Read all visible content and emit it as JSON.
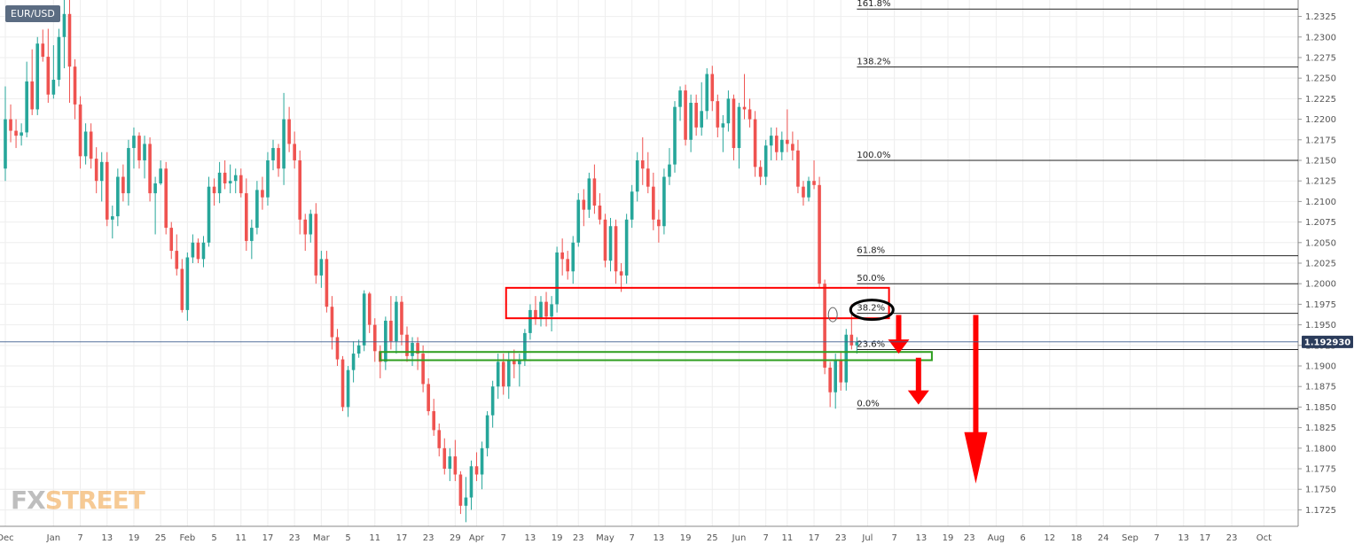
{
  "symbol": "EUR/USD",
  "logo": {
    "prefix": "FX",
    "suffix": "STREET"
  },
  "colors": {
    "up": "#26a69a",
    "down": "#ef5350",
    "box_red": "#ff0000",
    "box_green": "#2e9e1f",
    "price_tag": "#2b3c5b",
    "grid": "#eeeeee"
  },
  "last_price": {
    "label": "1.192930",
    "value": 1.19293
  },
  "chart_data": {
    "type": "candlestick",
    "title": "",
    "grid": true,
    "ylim": [
      1.1705,
      1.2345
    ],
    "y_ticks": [
      1.2325,
      1.23,
      1.2275,
      1.225,
      1.2225,
      1.22,
      1.2175,
      1.215,
      1.2125,
      1.21,
      1.2075,
      1.205,
      1.2025,
      1.2,
      1.1975,
      1.195,
      1.1925,
      1.19,
      1.1875,
      1.185,
      1.1825,
      1.18,
      1.1775,
      1.175,
      1.1725
    ],
    "x_labels": [
      "Dec",
      "Jan",
      "7",
      "13",
      "19",
      "25",
      "Feb",
      "5",
      "11",
      "17",
      "23",
      "Mar",
      "5",
      "11",
      "17",
      "23",
      "29",
      "Apr",
      "7",
      "13",
      "19",
      "23",
      "May",
      "7",
      "13",
      "19",
      "25",
      "Jun",
      "7",
      "11",
      "17",
      "23",
      "Jul",
      "7",
      "13",
      "19",
      "23",
      "Aug",
      "6",
      "12",
      "18",
      "24",
      "Sep",
      "7",
      "13",
      "17",
      "23",
      "Oct"
    ],
    "x_label_slots": [
      0,
      9,
      14,
      19,
      24,
      29,
      34,
      39,
      44,
      49,
      54,
      59,
      64,
      69,
      74,
      79,
      84,
      88,
      93,
      98,
      103,
      107,
      112,
      117,
      122,
      127,
      132,
      137,
      142,
      146,
      151,
      156,
      161,
      166,
      171,
      176,
      180,
      185,
      190,
      195,
      200,
      205,
      210,
      215,
      220,
      224,
      229,
      235
    ],
    "fib_levels": [
      {
        "label": "161.8%",
        "value": 1.2334
      },
      {
        "label": "138.2%",
        "value": 1.22635
      },
      {
        "label": "100.0%",
        "value": 1.215
      },
      {
        "label": "61.8%",
        "value": 1.2034
      },
      {
        "label": "50.0%",
        "value": 1.2
      },
      {
        "label": "38.2%",
        "value": 1.1964
      },
      {
        "label": "23.6%",
        "value": 1.192
      },
      {
        "label": "0.0%",
        "value": 1.1848
      }
    ],
    "resistance_zone": [
      1.1958,
      1.1995
    ],
    "support_zone": [
      1.1907,
      1.1917
    ],
    "candles": [
      {
        "o": 1.214,
        "h": 1.224,
        "l": 1.2125,
        "c": 1.22
      },
      {
        "o": 1.22,
        "h": 1.2218,
        "l": 1.2172,
        "c": 1.2186
      },
      {
        "o": 1.2186,
        "h": 1.22,
        "l": 1.2165,
        "c": 1.218
      },
      {
        "o": 1.218,
        "h": 1.2195,
        "l": 1.2168,
        "c": 1.2184
      },
      {
        "o": 1.2184,
        "h": 1.227,
        "l": 1.2178,
        "c": 1.2246
      },
      {
        "o": 1.2246,
        "h": 1.2285,
        "l": 1.2205,
        "c": 1.2212
      },
      {
        "o": 1.2212,
        "h": 1.23,
        "l": 1.2205,
        "c": 1.2292
      },
      {
        "o": 1.2292,
        "h": 1.2309,
        "l": 1.227,
        "c": 1.2276
      },
      {
        "o": 1.2276,
        "h": 1.231,
        "l": 1.222,
        "c": 1.223
      },
      {
        "o": 1.223,
        "h": 1.229,
        "l": 1.2225,
        "c": 1.2248
      },
      {
        "o": 1.2248,
        "h": 1.231,
        "l": 1.224,
        "c": 1.23
      },
      {
        "o": 1.23,
        "h": 1.2348,
        "l": 1.2262,
        "c": 1.2328
      },
      {
        "o": 1.2328,
        "h": 1.2345,
        "l": 1.222,
        "c": 1.2264
      },
      {
        "o": 1.2264,
        "h": 1.2273,
        "l": 1.22,
        "c": 1.2218
      },
      {
        "o": 1.2218,
        "h": 1.2228,
        "l": 1.214,
        "c": 1.2155
      },
      {
        "o": 1.2155,
        "h": 1.2195,
        "l": 1.2145,
        "c": 1.2185
      },
      {
        "o": 1.2185,
        "h": 1.2195,
        "l": 1.214,
        "c": 1.2152
      },
      {
        "o": 1.2152,
        "h": 1.2166,
        "l": 1.211,
        "c": 1.2125
      },
      {
        "o": 1.2125,
        "h": 1.216,
        "l": 1.21,
        "c": 1.2148
      },
      {
        "o": 1.2148,
        "h": 1.216,
        "l": 1.207,
        "c": 1.2078
      },
      {
        "o": 1.2078,
        "h": 1.2095,
        "l": 1.2055,
        "c": 1.2082
      },
      {
        "o": 1.2082,
        "h": 1.214,
        "l": 1.207,
        "c": 1.213
      },
      {
        "o": 1.213,
        "h": 1.2145,
        "l": 1.21,
        "c": 1.211
      },
      {
        "o": 1.211,
        "h": 1.2175,
        "l": 1.2095,
        "c": 1.2165
      },
      {
        "o": 1.2165,
        "h": 1.219,
        "l": 1.214,
        "c": 1.218
      },
      {
        "o": 1.218,
        "h": 1.2184,
        "l": 1.214,
        "c": 1.215
      },
      {
        "o": 1.215,
        "h": 1.218,
        "l": 1.2128,
        "c": 1.217
      },
      {
        "o": 1.217,
        "h": 1.2178,
        "l": 1.21,
        "c": 1.211
      },
      {
        "o": 1.211,
        "h": 1.213,
        "l": 1.206,
        "c": 1.2122
      },
      {
        "o": 1.2122,
        "h": 1.215,
        "l": 1.212,
        "c": 1.214
      },
      {
        "o": 1.214,
        "h": 1.2148,
        "l": 1.206,
        "c": 1.2068
      },
      {
        "o": 1.2068,
        "h": 1.2075,
        "l": 1.203,
        "c": 1.204
      },
      {
        "o": 1.204,
        "h": 1.206,
        "l": 1.201,
        "c": 1.2018
      },
      {
        "o": 1.2018,
        "h": 1.203,
        "l": 1.1965,
        "c": 1.1968
      },
      {
        "o": 1.1968,
        "h": 1.2038,
        "l": 1.1955,
        "c": 1.2032
      },
      {
        "o": 1.2032,
        "h": 1.206,
        "l": 1.2025,
        "c": 1.205
      },
      {
        "o": 1.205,
        "h": 1.2055,
        "l": 1.2025,
        "c": 1.203
      },
      {
        "o": 1.203,
        "h": 1.2058,
        "l": 1.202,
        "c": 1.205
      },
      {
        "o": 1.205,
        "h": 1.213,
        "l": 1.2045,
        "c": 1.2118
      },
      {
        "o": 1.2118,
        "h": 1.2128,
        "l": 1.2095,
        "c": 1.211
      },
      {
        "o": 1.211,
        "h": 1.2148,
        "l": 1.2098,
        "c": 1.2135
      },
      {
        "o": 1.2135,
        "h": 1.215,
        "l": 1.2115,
        "c": 1.2122
      },
      {
        "o": 1.2122,
        "h": 1.2145,
        "l": 1.211,
        "c": 1.2125
      },
      {
        "o": 1.2125,
        "h": 1.214,
        "l": 1.211,
        "c": 1.2132
      },
      {
        "o": 1.2132,
        "h": 1.214,
        "l": 1.2105,
        "c": 1.211
      },
      {
        "o": 1.211,
        "h": 1.2128,
        "l": 1.204,
        "c": 1.2052
      },
      {
        "o": 1.2052,
        "h": 1.2078,
        "l": 1.203,
        "c": 1.2068
      },
      {
        "o": 1.2068,
        "h": 1.2125,
        "l": 1.206,
        "c": 1.2114
      },
      {
        "o": 1.2114,
        "h": 1.213,
        "l": 1.209,
        "c": 1.2105
      },
      {
        "o": 1.2105,
        "h": 1.216,
        "l": 1.2095,
        "c": 1.215
      },
      {
        "o": 1.215,
        "h": 1.2175,
        "l": 1.2138,
        "c": 1.2165
      },
      {
        "o": 1.2165,
        "h": 1.217,
        "l": 1.213,
        "c": 1.214
      },
      {
        "o": 1.214,
        "h": 1.2232,
        "l": 1.212,
        "c": 1.22
      },
      {
        "o": 1.22,
        "h": 1.2215,
        "l": 1.216,
        "c": 1.217
      },
      {
        "o": 1.217,
        "h": 1.2185,
        "l": 1.214,
        "c": 1.215
      },
      {
        "o": 1.215,
        "h": 1.2162,
        "l": 1.206,
        "c": 1.2078
      },
      {
        "o": 1.2078,
        "h": 1.2085,
        "l": 1.204,
        "c": 1.206
      },
      {
        "o": 1.206,
        "h": 1.209,
        "l": 1.205,
        "c": 1.2085
      },
      {
        "o": 1.2085,
        "h": 1.2098,
        "l": 1.2,
        "c": 1.201
      },
      {
        "o": 1.201,
        "h": 1.204,
        "l": 1.1995,
        "c": 1.203
      },
      {
        "o": 1.203,
        "h": 1.204,
        "l": 1.1965,
        "c": 1.1972
      },
      {
        "o": 1.1972,
        "h": 1.1985,
        "l": 1.192,
        "c": 1.1935
      },
      {
        "o": 1.1935,
        "h": 1.1945,
        "l": 1.19,
        "c": 1.1908
      },
      {
        "o": 1.1908,
        "h": 1.1912,
        "l": 1.1845,
        "c": 1.185
      },
      {
        "o": 1.185,
        "h": 1.19,
        "l": 1.1838,
        "c": 1.1895
      },
      {
        "o": 1.1895,
        "h": 1.193,
        "l": 1.188,
        "c": 1.1915
      },
      {
        "o": 1.1915,
        "h": 1.1932,
        "l": 1.191,
        "c": 1.1925
      },
      {
        "o": 1.1925,
        "h": 1.1992,
        "l": 1.1918,
        "c": 1.1988
      },
      {
        "o": 1.1988,
        "h": 1.199,
        "l": 1.194,
        "c": 1.195
      },
      {
        "o": 1.195,
        "h": 1.1958,
        "l": 1.1905,
        "c": 1.1918
      },
      {
        "o": 1.1918,
        "h": 1.1925,
        "l": 1.1885,
        "c": 1.1905
      },
      {
        "o": 1.1905,
        "h": 1.196,
        "l": 1.1895,
        "c": 1.1955
      },
      {
        "o": 1.1955,
        "h": 1.1985,
        "l": 1.192,
        "c": 1.193
      },
      {
        "o": 1.193,
        "h": 1.1985,
        "l": 1.1915,
        "c": 1.1978
      },
      {
        "o": 1.1978,
        "h": 1.1985,
        "l": 1.1925,
        "c": 1.1938
      },
      {
        "o": 1.1938,
        "h": 1.1948,
        "l": 1.1905,
        "c": 1.1912
      },
      {
        "o": 1.1912,
        "h": 1.1935,
        "l": 1.19,
        "c": 1.1928
      },
      {
        "o": 1.1928,
        "h": 1.1935,
        "l": 1.1895,
        "c": 1.1915
      },
      {
        "o": 1.1915,
        "h": 1.1925,
        "l": 1.1868,
        "c": 1.1878
      },
      {
        "o": 1.1878,
        "h": 1.1885,
        "l": 1.184,
        "c": 1.1845
      },
      {
        "o": 1.1845,
        "h": 1.186,
        "l": 1.1815,
        "c": 1.1822
      },
      {
        "o": 1.1822,
        "h": 1.183,
        "l": 1.179,
        "c": 1.18
      },
      {
        "o": 1.18,
        "h": 1.1812,
        "l": 1.1768,
        "c": 1.1775
      },
      {
        "o": 1.1775,
        "h": 1.18,
        "l": 1.176,
        "c": 1.179
      },
      {
        "o": 1.179,
        "h": 1.181,
        "l": 1.176,
        "c": 1.1768
      },
      {
        "o": 1.1768,
        "h": 1.1772,
        "l": 1.172,
        "c": 1.173
      },
      {
        "o": 1.173,
        "h": 1.1765,
        "l": 1.171,
        "c": 1.174
      },
      {
        "o": 1.174,
        "h": 1.1785,
        "l": 1.1725,
        "c": 1.1778
      },
      {
        "o": 1.1778,
        "h": 1.1795,
        "l": 1.176,
        "c": 1.1768
      },
      {
        "o": 1.1768,
        "h": 1.1808,
        "l": 1.175,
        "c": 1.18
      },
      {
        "o": 1.18,
        "h": 1.1845,
        "l": 1.179,
        "c": 1.184
      },
      {
        "o": 1.184,
        "h": 1.1882,
        "l": 1.1825,
        "c": 1.1875
      },
      {
        "o": 1.1875,
        "h": 1.1915,
        "l": 1.186,
        "c": 1.1905
      },
      {
        "o": 1.1905,
        "h": 1.1915,
        "l": 1.1865,
        "c": 1.1875
      },
      {
        "o": 1.1875,
        "h": 1.1918,
        "l": 1.186,
        "c": 1.1908
      },
      {
        "o": 1.1908,
        "h": 1.192,
        "l": 1.1885,
        "c": 1.1902
      },
      {
        "o": 1.1902,
        "h": 1.1915,
        "l": 1.1875,
        "c": 1.1908
      },
      {
        "o": 1.1908,
        "h": 1.1945,
        "l": 1.19,
        "c": 1.194
      },
      {
        "o": 1.194,
        "h": 1.1975,
        "l": 1.1932,
        "c": 1.1968
      },
      {
        "o": 1.1968,
        "h": 1.1985,
        "l": 1.195,
        "c": 1.1958
      },
      {
        "o": 1.1958,
        "h": 1.1985,
        "l": 1.1948,
        "c": 1.1978
      },
      {
        "o": 1.1978,
        "h": 1.199,
        "l": 1.1948,
        "c": 1.196
      },
      {
        "o": 1.196,
        "h": 1.1985,
        "l": 1.1942,
        "c": 1.1975
      },
      {
        "o": 1.1975,
        "h": 1.2045,
        "l": 1.1965,
        "c": 1.2038
      },
      {
        "o": 1.2038,
        "h": 1.2055,
        "l": 1.201,
        "c": 1.203
      },
      {
        "o": 1.203,
        "h": 1.204,
        "l": 1.2005,
        "c": 1.2015
      },
      {
        "o": 1.2015,
        "h": 1.2058,
        "l": 1.2,
        "c": 1.205
      },
      {
        "o": 1.205,
        "h": 1.211,
        "l": 1.2045,
        "c": 1.2102
      },
      {
        "o": 1.2102,
        "h": 1.2115,
        "l": 1.207,
        "c": 1.209
      },
      {
        "o": 1.209,
        "h": 1.2135,
        "l": 1.208,
        "c": 1.2128
      },
      {
        "o": 1.2128,
        "h": 1.2145,
        "l": 1.2085,
        "c": 1.2095
      },
      {
        "o": 1.2095,
        "h": 1.211,
        "l": 1.2072,
        "c": 1.2078
      },
      {
        "o": 1.2078,
        "h": 1.2085,
        "l": 1.202,
        "c": 1.2028
      },
      {
        "o": 1.2028,
        "h": 1.208,
        "l": 1.2015,
        "c": 1.207
      },
      {
        "o": 1.207,
        "h": 1.2078,
        "l": 1.2,
        "c": 1.2015
      },
      {
        "o": 1.2015,
        "h": 1.2025,
        "l": 1.199,
        "c": 1.201
      },
      {
        "o": 1.201,
        "h": 1.2085,
        "l": 1.2,
        "c": 1.2078
      },
      {
        "o": 1.2078,
        "h": 1.212,
        "l": 1.2068,
        "c": 1.2112
      },
      {
        "o": 1.2112,
        "h": 1.216,
        "l": 1.21,
        "c": 1.215
      },
      {
        "o": 1.215,
        "h": 1.2178,
        "l": 1.212,
        "c": 1.214
      },
      {
        "o": 1.214,
        "h": 1.216,
        "l": 1.211,
        "c": 1.2118
      },
      {
        "o": 1.2118,
        "h": 1.2135,
        "l": 1.2065,
        "c": 1.2078
      },
      {
        "o": 1.2078,
        "h": 1.209,
        "l": 1.205,
        "c": 1.207
      },
      {
        "o": 1.207,
        "h": 1.214,
        "l": 1.206,
        "c": 1.213
      },
      {
        "o": 1.213,
        "h": 1.2165,
        "l": 1.212,
        "c": 1.2145
      },
      {
        "o": 1.2145,
        "h": 1.2222,
        "l": 1.2135,
        "c": 1.2215
      },
      {
        "o": 1.2215,
        "h": 1.224,
        "l": 1.2198,
        "c": 1.2235
      },
      {
        "o": 1.2235,
        "h": 1.2242,
        "l": 1.2168,
        "c": 1.2175
      },
      {
        "o": 1.2175,
        "h": 1.223,
        "l": 1.216,
        "c": 1.222
      },
      {
        "o": 1.222,
        "h": 1.223,
        "l": 1.218,
        "c": 1.219
      },
      {
        "o": 1.219,
        "h": 1.2245,
        "l": 1.218,
        "c": 1.221
      },
      {
        "o": 1.221,
        "h": 1.2262,
        "l": 1.22,
        "c": 1.2255
      },
      {
        "o": 1.2255,
        "h": 1.2265,
        "l": 1.221,
        "c": 1.2222
      },
      {
        "o": 1.2222,
        "h": 1.223,
        "l": 1.2178,
        "c": 1.219
      },
      {
        "o": 1.219,
        "h": 1.2205,
        "l": 1.216,
        "c": 1.2195
      },
      {
        "o": 1.2195,
        "h": 1.2235,
        "l": 1.2185,
        "c": 1.2225
      },
      {
        "o": 1.2225,
        "h": 1.223,
        "l": 1.215,
        "c": 1.2165
      },
      {
        "o": 1.2165,
        "h": 1.222,
        "l": 1.214,
        "c": 1.2215
      },
      {
        "o": 1.2215,
        "h": 1.2255,
        "l": 1.22,
        "c": 1.2212
      },
      {
        "o": 1.2212,
        "h": 1.2225,
        "l": 1.219,
        "c": 1.22
      },
      {
        "o": 1.22,
        "h": 1.221,
        "l": 1.213,
        "c": 1.2142
      },
      {
        "o": 1.2142,
        "h": 1.215,
        "l": 1.212,
        "c": 1.213
      },
      {
        "o": 1.213,
        "h": 1.2175,
        "l": 1.212,
        "c": 1.2168
      },
      {
        "o": 1.2168,
        "h": 1.219,
        "l": 1.215,
        "c": 1.218
      },
      {
        "o": 1.218,
        "h": 1.219,
        "l": 1.215,
        "c": 1.216
      },
      {
        "o": 1.216,
        "h": 1.2185,
        "l": 1.215,
        "c": 1.2175
      },
      {
        "o": 1.2175,
        "h": 1.2212,
        "l": 1.216,
        "c": 1.217
      },
      {
        "o": 1.217,
        "h": 1.2185,
        "l": 1.215,
        "c": 1.2162
      },
      {
        "o": 1.2162,
        "h": 1.2175,
        "l": 1.211,
        "c": 1.2118
      },
      {
        "o": 1.2118,
        "h": 1.2125,
        "l": 1.2095,
        "c": 1.2105
      },
      {
        "o": 1.2105,
        "h": 1.213,
        "l": 1.21,
        "c": 1.2125
      },
      {
        "o": 1.2125,
        "h": 1.215,
        "l": 1.2115,
        "c": 1.212
      },
      {
        "o": 1.212,
        "h": 1.213,
        "l": 1.1995,
        "c": 1.2
      },
      {
        "o": 1.2,
        "h": 1.2005,
        "l": 1.189,
        "c": 1.1898
      },
      {
        "o": 1.1898,
        "h": 1.1905,
        "l": 1.185,
        "c": 1.1868
      },
      {
        "o": 1.1868,
        "h": 1.1915,
        "l": 1.1848,
        "c": 1.1908
      },
      {
        "o": 1.1908,
        "h": 1.1918,
        "l": 1.187,
        "c": 1.188
      },
      {
        "o": 1.188,
        "h": 1.1945,
        "l": 1.187,
        "c": 1.1938
      },
      {
        "o": 1.1938,
        "h": 1.1975,
        "l": 1.192,
        "c": 1.1925
      },
      {
        "o": 1.1925,
        "h": 1.1935,
        "l": 1.1915,
        "c": 1.1929
      }
    ]
  }
}
